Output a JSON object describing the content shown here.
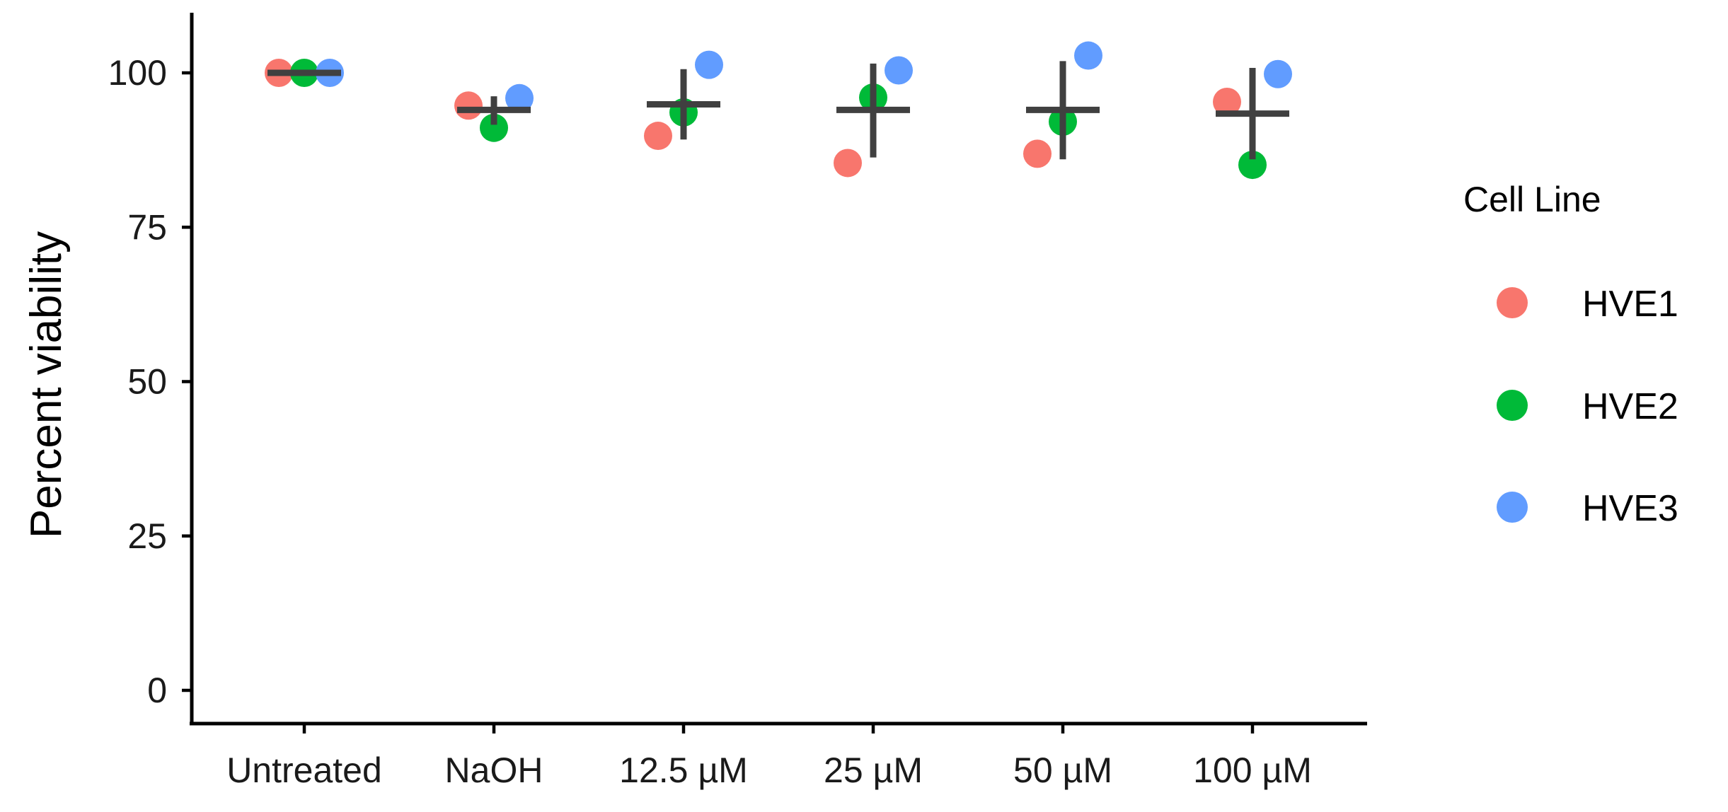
{
  "chart_data": {
    "type": "scatter",
    "title": "",
    "xlabel": "",
    "ylabel": "Percent viability",
    "categories": [
      "Untreated",
      "NaOH",
      "12.5 µM",
      "25 µM",
      "50 µM",
      "100 µM"
    ],
    "yticks": [
      0,
      25,
      50,
      75,
      100
    ],
    "ylim": [
      -5,
      110
    ],
    "grid": false,
    "legend": {
      "title": "Cell Line",
      "position": "right"
    },
    "series": [
      {
        "name": "HVE1",
        "color": "#F8766D",
        "values": [
          100,
          94.7,
          89.8,
          85.4,
          86.9,
          95.3
        ]
      },
      {
        "name": "HVE2",
        "color": "#00BA38",
        "values": [
          100,
          91.1,
          93.6,
          96.0,
          92.1,
          85.1
        ]
      },
      {
        "name": "HVE3",
        "color": "#619CFF",
        "values": [
          100,
          95.9,
          101.3,
          100.4,
          102.8,
          99.8
        ]
      }
    ],
    "summary": {
      "color": "#404040",
      "mean": [
        100,
        94.0,
        94.9,
        94.0,
        94.0,
        93.4
      ],
      "lower": [
        100,
        91.6,
        89.2,
        86.3,
        86.0,
        86.0
      ],
      "upper": [
        100,
        96.2,
        100.6,
        101.5,
        101.9,
        100.8
      ]
    }
  }
}
